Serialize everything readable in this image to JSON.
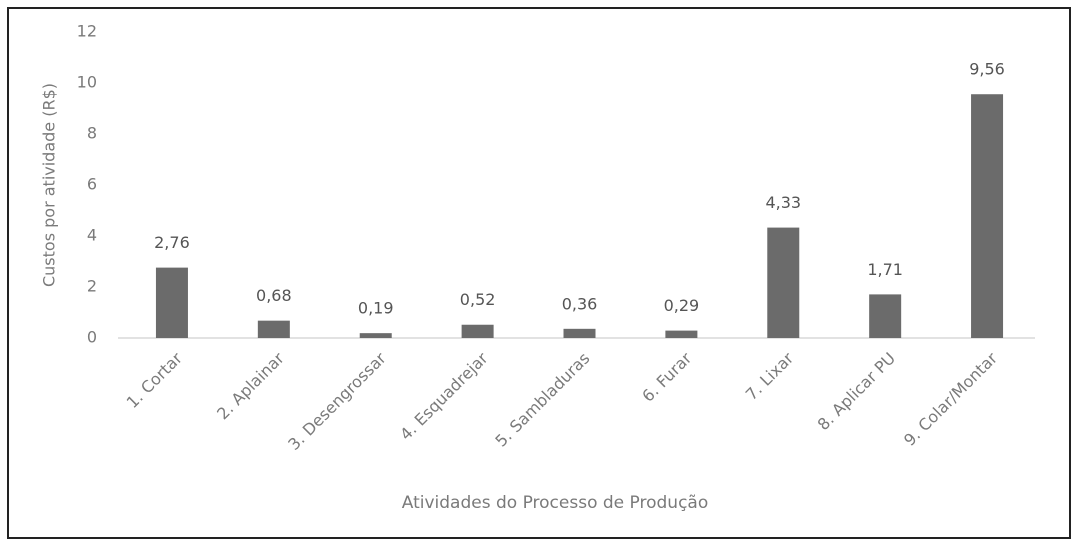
{
  "chart_data": {
    "type": "bar",
    "x_label": "Atividades do Processo de Produção",
    "y_label": "Custos por atividade (R$)",
    "categories": [
      "1. Cortar",
      "2. Aplainar",
      "3. Desengrossar",
      "4. Esquadrejar",
      "5. Sambladuras",
      "6. Furar",
      "7. Lixar",
      "8. Aplicar PU",
      "9. Colar/Montar"
    ],
    "values": [
      2.76,
      0.68,
      0.19,
      0.52,
      0.36,
      0.29,
      4.33,
      1.71,
      9.56
    ],
    "value_labels": [
      "2,76",
      "0,68",
      "0,19",
      "0,52",
      "0,36",
      "0,29",
      "4,33",
      "1,71",
      "9,56"
    ],
    "color": "#6b6b6b",
    "ylim": [
      0,
      12
    ],
    "yticks": [
      0,
      2,
      4,
      6,
      8,
      10,
      12
    ],
    "grid": false
  }
}
